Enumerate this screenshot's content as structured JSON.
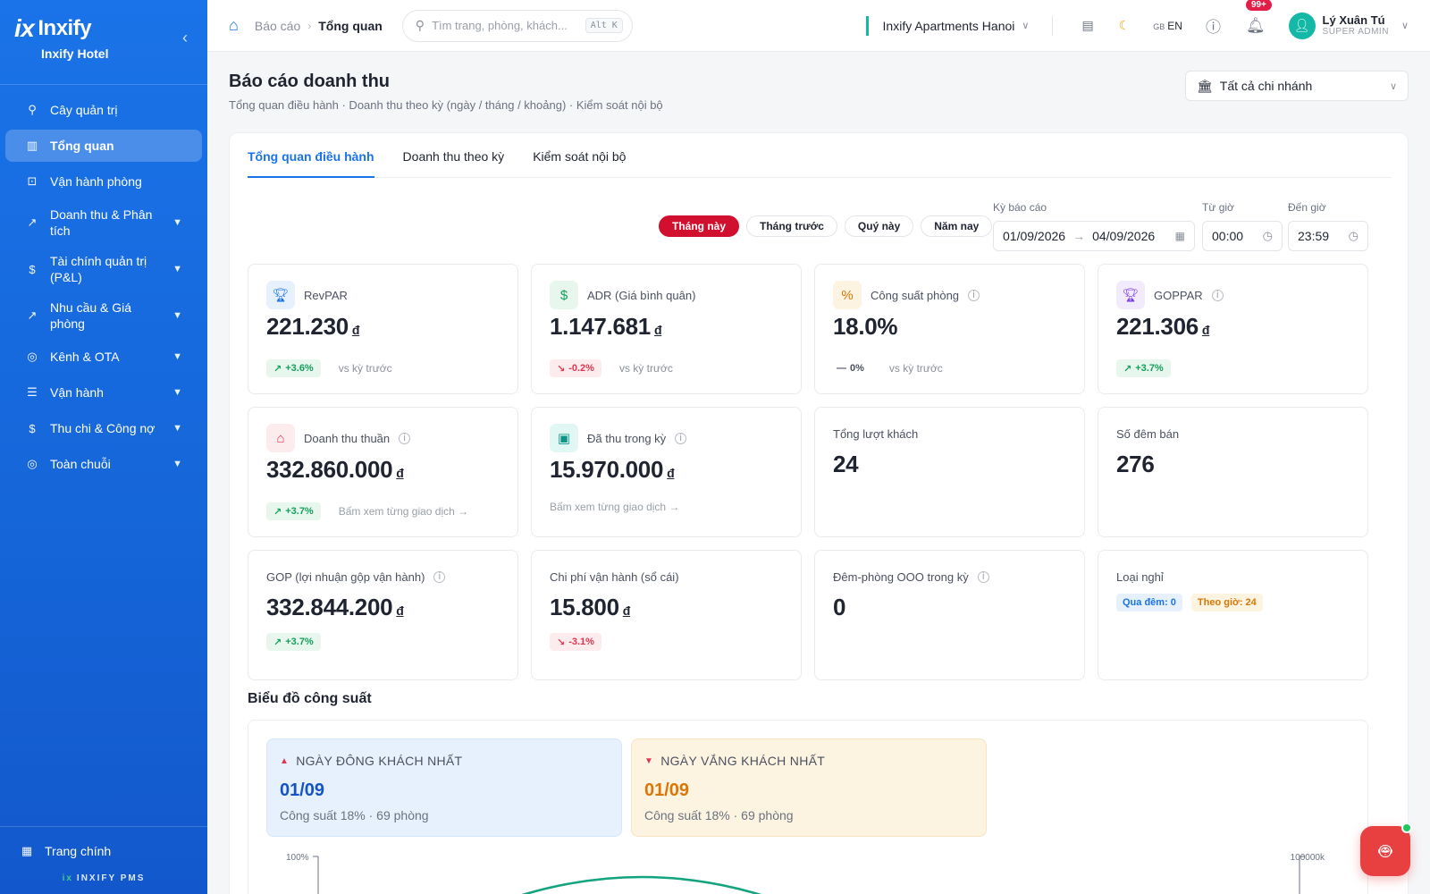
{
  "brand": {
    "name": "Inxify",
    "mark": "ix",
    "hotel": "Inxify Hotel"
  },
  "sidebar": {
    "items": [
      {
        "label": "Cây quản trị",
        "icon": "org-tree-icon",
        "glyph": "⚲"
      },
      {
        "label": "Tổng quan",
        "icon": "bar-chart-icon",
        "glyph": "▥"
      },
      {
        "label": "Vận hành phòng",
        "icon": "line-chart-box-icon",
        "glyph": "⊡"
      },
      {
        "label": "Doanh thu & Phân tích",
        "icon": "line-chart-icon",
        "glyph": "↗"
      },
      {
        "label": "Tài chính quản trị (P&L)",
        "icon": "dollar-circle-icon",
        "glyph": "$"
      },
      {
        "label": "Nhu cầu & Giá phòng",
        "icon": "trend-icon",
        "glyph": "↗"
      },
      {
        "label": "Kênh & OTA",
        "icon": "globe-icon",
        "glyph": "◎"
      },
      {
        "label": "Vận hành",
        "icon": "checklist-icon",
        "glyph": "☰"
      },
      {
        "label": "Thu chi & Công nợ",
        "icon": "coin-icon",
        "glyph": "$"
      },
      {
        "label": "Toàn chuỗi",
        "icon": "globe-chain-icon",
        "glyph": "◎"
      }
    ],
    "home_label": "Trang chính",
    "footer": "INXIFY PMS"
  },
  "header": {
    "breadcrumb_parent": "Báo cáo",
    "breadcrumb_current": "Tổng quan",
    "search_placeholder": "Tìm trang, phòng, khách...",
    "search_shortcut": "Alt K",
    "hotel_name": "Inxify Apartments Hanoi",
    "lang_flag": "GB",
    "lang_code": "EN",
    "notifications_badge": "99+",
    "user_name": "Lý Xuân Tú",
    "user_role": "SUPER ADMIN"
  },
  "page": {
    "title": "Báo cáo doanh thu",
    "subtitle": "Tổng quan điều hành · Doanh thu theo kỳ (ngày / tháng / khoảng) · Kiểm soát nội bộ",
    "branch_select": "Tất cả chi nhánh"
  },
  "tabs": [
    "Tổng quan điều hành",
    "Doanh thu theo kỳ",
    "Kiểm soát nội bộ"
  ],
  "filters": {
    "periods": [
      "Tháng này",
      "Tháng trước",
      "Quý này",
      "Năm nay"
    ],
    "report_period_label": "Kỳ báo cáo",
    "date_from": "01/09/2026",
    "date_to": "04/09/2026",
    "from_time_label": "Từ giờ",
    "from_time": "00:00",
    "to_time_label": "Đến giờ",
    "to_time": "23:59"
  },
  "kpis": {
    "revpar": {
      "label": "RevPAR",
      "value": "221.230",
      "currency": "đ",
      "delta": "+3.6%",
      "vs": "vs kỳ trước"
    },
    "adr": {
      "label": "ADR (Giá bình quân)",
      "value": "1.147.681",
      "currency": "đ",
      "delta": "-0.2%",
      "vs": "vs kỳ trước"
    },
    "occupancy": {
      "label": "Công suất phòng",
      "value": "18.0%",
      "delta": "0%",
      "vs": "vs kỳ trước"
    },
    "goppar": {
      "label": "GOPPAR",
      "value": "221.306",
      "currency": "đ",
      "delta": "+3.7%"
    },
    "net_revenue": {
      "label": "Doanh thu thuần",
      "value": "332.860.000",
      "currency": "đ",
      "delta": "+3.7%",
      "link": "Bấm xem từng giao dịch →"
    },
    "collected": {
      "label": "Đã thu trong kỳ",
      "value": "15.970.000",
      "currency": "đ",
      "link": "Bấm xem từng giao dịch →"
    },
    "guests": {
      "label": "Tổng lượt khách",
      "value": "24"
    },
    "nights": {
      "label": "Số đêm bán",
      "value": "276"
    },
    "gop": {
      "label": "GOP (lợi nhuận gộp vận hành)",
      "value": "332.844.200",
      "currency": "đ",
      "delta": "+3.7%"
    },
    "opex": {
      "label": "Chi phí vận hành (sổ cái)",
      "value": "15.800",
      "currency": "đ",
      "delta": "-3.1%"
    },
    "ooo": {
      "label": "Đêm-phòng OOO trong kỳ",
      "value": "0"
    },
    "stay_type": {
      "label": "Loại nghỉ",
      "overnight": "Qua đêm: 0",
      "hourly": "Theo giờ: 24"
    }
  },
  "occupancy_chart": {
    "section_title": "Biểu đồ công suất",
    "busiest": {
      "label": "NGÀY ĐÔNG KHÁCH NHẤT",
      "day": "01/09",
      "sub": "Công suất 18% · 69 phòng"
    },
    "quietest": {
      "label": "NGÀY VẮNG KHÁCH NHẤT",
      "day": "01/09",
      "sub": "Công suất 18% · 69 phòng"
    },
    "y_left_max": "100%",
    "y_right_max": "100000k"
  },
  "colors": {
    "accent": "#1a73e8",
    "active_pill": "#d0102e",
    "line": "#14a37f"
  }
}
